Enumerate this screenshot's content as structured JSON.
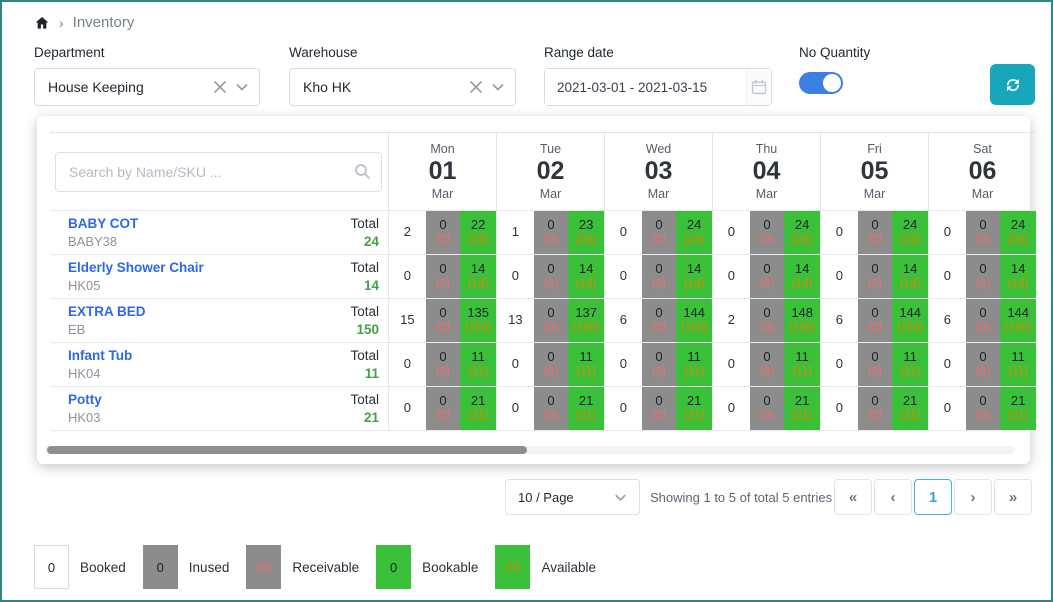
{
  "breadcrumb": {
    "home_icon": "home-icon",
    "current": "Inventory"
  },
  "filters": {
    "department": {
      "label": "Department",
      "value": "House Keeping"
    },
    "warehouse": {
      "label": "Warehouse",
      "value": "Kho HK"
    },
    "range_date": {
      "label": "Range date",
      "value": "2021-03-01 - 2021-03-15",
      "calendar_icon": "calendar-icon"
    },
    "no_quantity": {
      "label": "No Quantity",
      "enabled": true
    },
    "refresh_icon": "refresh-icon"
  },
  "table": {
    "search_placeholder": "Search by Name/SKU ...",
    "search_icon": "search-icon",
    "total_label": "Total",
    "days": [
      {
        "weekday": "Mon",
        "day": "01",
        "month": "Mar"
      },
      {
        "weekday": "Tue",
        "day": "02",
        "month": "Mar"
      },
      {
        "weekday": "Wed",
        "day": "03",
        "month": "Mar"
      },
      {
        "weekday": "Thu",
        "day": "04",
        "month": "Mar"
      },
      {
        "weekday": "Fri",
        "day": "05",
        "month": "Mar"
      },
      {
        "weekday": "Sat",
        "day": "06",
        "month": "Mar"
      }
    ],
    "rows": [
      {
        "name": "BABY COT",
        "sku": "BABY38",
        "total": "24",
        "cells": [
          {
            "booked": "2",
            "inused": "0",
            "receivable": "(0)",
            "bookable": "22",
            "available": "(24)"
          },
          {
            "booked": "1",
            "inused": "0",
            "receivable": "(0)",
            "bookable": "23",
            "available": "(24)"
          },
          {
            "booked": "0",
            "inused": "0",
            "receivable": "(0)",
            "bookable": "24",
            "available": "(24)"
          },
          {
            "booked": "0",
            "inused": "0",
            "receivable": "(0)",
            "bookable": "24",
            "available": "(24)"
          },
          {
            "booked": "0",
            "inused": "0",
            "receivable": "(0)",
            "bookable": "24",
            "available": "(24)"
          },
          {
            "booked": "0",
            "inused": "0",
            "receivable": "(0)",
            "bookable": "24",
            "available": "(24)"
          }
        ]
      },
      {
        "name": "Elderly Shower Chair",
        "sku": "HK05",
        "total": "14",
        "cells": [
          {
            "booked": "0",
            "inused": "0",
            "receivable": "(0)",
            "bookable": "14",
            "available": "(14)"
          },
          {
            "booked": "0",
            "inused": "0",
            "receivable": "(0)",
            "bookable": "14",
            "available": "(14)"
          },
          {
            "booked": "0",
            "inused": "0",
            "receivable": "(0)",
            "bookable": "14",
            "available": "(14)"
          },
          {
            "booked": "0",
            "inused": "0",
            "receivable": "(0)",
            "bookable": "14",
            "available": "(14)"
          },
          {
            "booked": "0",
            "inused": "0",
            "receivable": "(0)",
            "bookable": "14",
            "available": "(14)"
          },
          {
            "booked": "0",
            "inused": "0",
            "receivable": "(0)",
            "bookable": "14",
            "available": "(14)"
          }
        ]
      },
      {
        "name": "EXTRA BED",
        "sku": "EB",
        "total": "150",
        "cells": [
          {
            "booked": "15",
            "inused": "0",
            "receivable": "(0)",
            "bookable": "135",
            "available": "(150)"
          },
          {
            "booked": "13",
            "inused": "0",
            "receivable": "(0)",
            "bookable": "137",
            "available": "(150)"
          },
          {
            "booked": "6",
            "inused": "0",
            "receivable": "(0)",
            "bookable": "144",
            "available": "(150)"
          },
          {
            "booked": "2",
            "inused": "0",
            "receivable": "(0)",
            "bookable": "148",
            "available": "(150)"
          },
          {
            "booked": "6",
            "inused": "0",
            "receivable": "(0)",
            "bookable": "144",
            "available": "(150)"
          },
          {
            "booked": "6",
            "inused": "0",
            "receivable": "(0)",
            "bookable": "144",
            "available": "(150)"
          }
        ]
      },
      {
        "name": "Infant Tub",
        "sku": "HK04",
        "total": "11",
        "cells": [
          {
            "booked": "0",
            "inused": "0",
            "receivable": "(0)",
            "bookable": "11",
            "available": "(11)"
          },
          {
            "booked": "0",
            "inused": "0",
            "receivable": "(0)",
            "bookable": "11",
            "available": "(11)"
          },
          {
            "booked": "0",
            "inused": "0",
            "receivable": "(0)",
            "bookable": "11",
            "available": "(11)"
          },
          {
            "booked": "0",
            "inused": "0",
            "receivable": "(0)",
            "bookable": "11",
            "available": "(11)"
          },
          {
            "booked": "0",
            "inused": "0",
            "receivable": "(0)",
            "bookable": "11",
            "available": "(11)"
          },
          {
            "booked": "0",
            "inused": "0",
            "receivable": "(0)",
            "bookable": "11",
            "available": "(11)"
          }
        ]
      },
      {
        "name": "Potty",
        "sku": "HK03",
        "total": "21",
        "cells": [
          {
            "booked": "0",
            "inused": "0",
            "receivable": "(0)",
            "bookable": "21",
            "available": "(21)"
          },
          {
            "booked": "0",
            "inused": "0",
            "receivable": "(0)",
            "bookable": "21",
            "available": "(21)"
          },
          {
            "booked": "0",
            "inused": "0",
            "receivable": "(0)",
            "bookable": "21",
            "available": "(21)"
          },
          {
            "booked": "0",
            "inused": "0",
            "receivable": "(0)",
            "bookable": "21",
            "available": "(21)"
          },
          {
            "booked": "0",
            "inused": "0",
            "receivable": "(0)",
            "bookable": "21",
            "available": "(21)"
          },
          {
            "booked": "0",
            "inused": "0",
            "receivable": "(0)",
            "bookable": "21",
            "available": "(21)"
          }
        ]
      }
    ]
  },
  "pagination": {
    "page_size": "10 / Page",
    "summary": "Showing 1 to 5 of total 5 entries",
    "buttons": [
      {
        "label": "«",
        "name": "first-page-button",
        "current": false
      },
      {
        "label": "‹",
        "name": "prev-page-button",
        "current": false
      },
      {
        "label": "1",
        "name": "page-1-button",
        "current": true
      },
      {
        "label": "›",
        "name": "next-page-button",
        "current": false
      },
      {
        "label": "»",
        "name": "last-page-button",
        "current": false
      }
    ]
  },
  "legend": {
    "items": [
      {
        "value": "0",
        "label": "Booked",
        "kind": "booked"
      },
      {
        "value": "0",
        "label": "Inused",
        "kind": "inused"
      },
      {
        "value": "(0)",
        "label": "Receivable",
        "kind": "receivable"
      },
      {
        "value": "0",
        "label": "Bookable",
        "kind": "bookable"
      },
      {
        "value": "(0)",
        "label": "Available",
        "kind": "available"
      }
    ]
  },
  "colors": {
    "frame_teal": "#2b8887",
    "refresh_teal": "#18a7ba",
    "toggle_blue": "#3b7fe3",
    "link_blue": "#2d68e8",
    "cell_gray": "#8c8c8c",
    "cell_green": "#3bc139",
    "receivable_red": "#f56c6c",
    "available_orange": "#e08300",
    "total_green": "#43a047",
    "current_page_blue": "#3c9fe6"
  }
}
